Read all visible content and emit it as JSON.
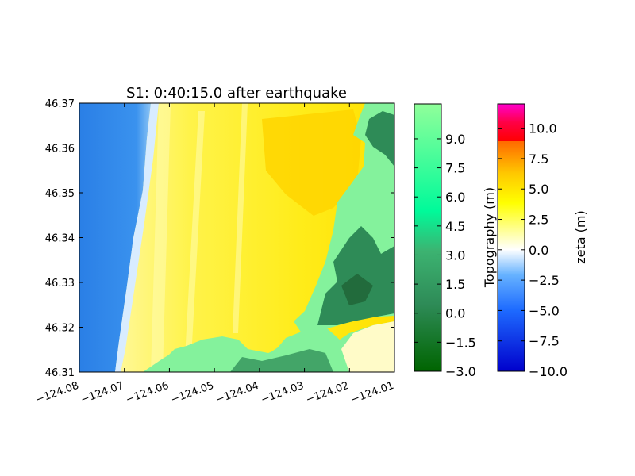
{
  "chart_data": {
    "type": "heatmap",
    "title": "S1: 0:40:15.0 after earthquake",
    "xlabel": "",
    "ylabel": "",
    "xlim": [
      -124.08,
      -124.01
    ],
    "ylim": [
      46.31,
      46.37
    ],
    "x_ticks": [
      "−124.08",
      "−124.07",
      "−124.06",
      "−124.05",
      "−124.04",
      "−124.03",
      "−124.02",
      "−124.01"
    ],
    "y_ticks": [
      "46.31",
      "46.32",
      "46.33",
      "46.34",
      "46.35",
      "46.36",
      "46.37"
    ],
    "grid": false,
    "colorbars": [
      {
        "label": "Topography (m)",
        "range": [
          -3.0,
          10.8
        ],
        "ticks": [
          "−3.0",
          "−1.5",
          "0.0",
          "1.5",
          "3.0",
          "4.5",
          "6.0",
          "7.5",
          "9.0"
        ],
        "colors": [
          "#006400",
          "#3cb371",
          "#00fa9a",
          "#7fff7f",
          "#90ff9a"
        ]
      },
      {
        "label": "zeta (m)",
        "range": [
          -10.0,
          12.0
        ],
        "ticks": [
          "−10.0",
          "−7.5",
          "−5.0",
          "−2.5",
          "0.0",
          "2.5",
          "5.0",
          "7.5",
          "10.0"
        ],
        "colors": [
          "#0000cc",
          "#3399ff",
          "#ffffff",
          "#ffff00",
          "#ff8800",
          "#ff0000",
          "#ff00ff"
        ]
      }
    ]
  },
  "colors": {
    "ocean": "#2f86e8",
    "ocean_dark": "#1f6fe0",
    "surf": "#cfe6ff",
    "flood_yellow": "#fff200",
    "flood_pale": "#fffb80",
    "flood_orange": "#ffd400",
    "land": "#80f09a",
    "land_dark": "#2e8b57"
  }
}
